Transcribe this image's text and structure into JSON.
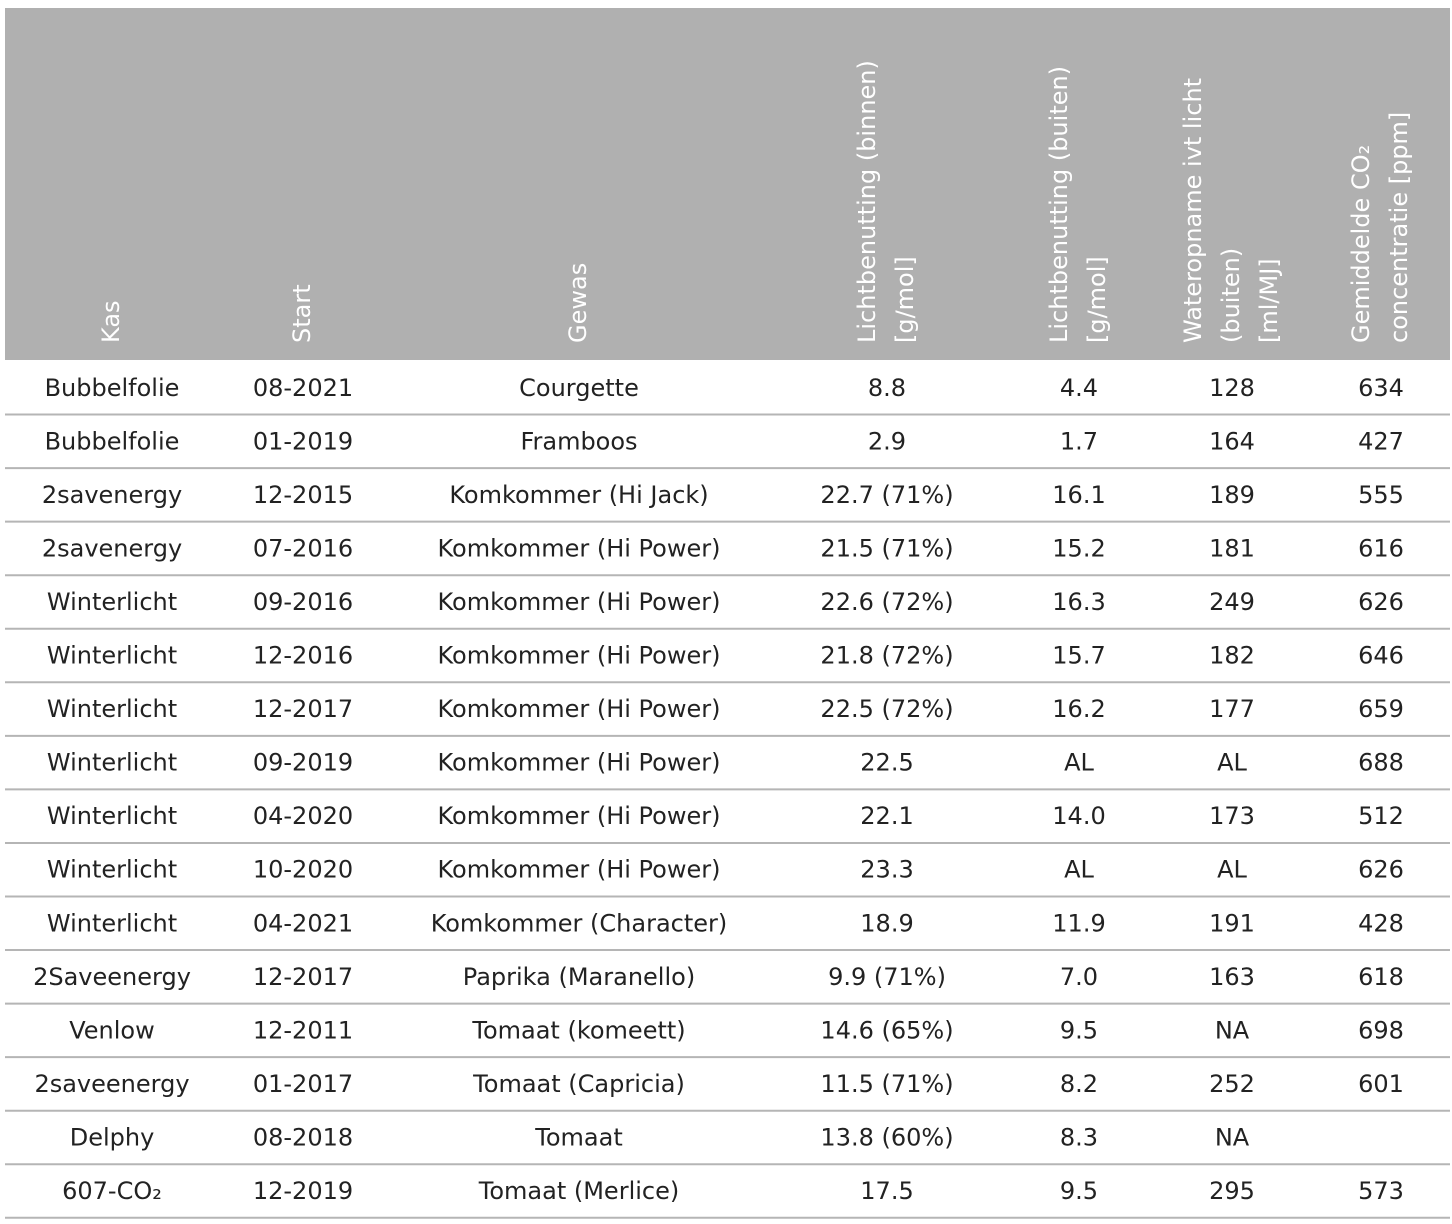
{
  "table": {
    "headers": [
      [
        "Kas"
      ],
      [
        "Start"
      ],
      [
        "Gewas"
      ],
      [
        "Lichtbenutting (binnen)",
        "[g/mol]"
      ],
      [
        "Lichtbenutting (buiten)",
        "[g/mol]"
      ],
      [
        "Wateropname ivt licht",
        "(buiten)",
        "[ml/MJ]"
      ],
      [
        "Gemiddelde CO₂",
        "concentratie [ppm]"
      ]
    ],
    "rows": [
      [
        "Bubbelfolie",
        "08-2021",
        "Courgette",
        "8.8",
        "4.4",
        "128",
        "634"
      ],
      [
        "Bubbelfolie",
        "01-2019",
        "Framboos",
        "2.9",
        "1.7",
        "164",
        "427"
      ],
      [
        "2savenergy",
        "12-2015",
        "Komkommer (Hi Jack)",
        "22.7 (71%)",
        "16.1",
        "189",
        "555"
      ],
      [
        "2savenergy",
        "07-2016",
        "Komkommer (Hi Power)",
        "21.5 (71%)",
        "15.2",
        "181",
        "616"
      ],
      [
        "Winterlicht",
        "09-2016",
        "Komkommer (Hi Power)",
        "22.6 (72%)",
        "16.3",
        "249",
        "626"
      ],
      [
        "Winterlicht",
        "12-2016",
        "Komkommer (Hi Power)",
        "21.8 (72%)",
        "15.7",
        "182",
        "646"
      ],
      [
        "Winterlicht",
        "12-2017",
        "Komkommer (Hi Power)",
        "22.5 (72%)",
        "16.2",
        "177",
        "659"
      ],
      [
        "Winterlicht",
        "09-2019",
        "Komkommer (Hi Power)",
        "22.5",
        "AL",
        "AL",
        "688"
      ],
      [
        "Winterlicht",
        "04-2020",
        "Komkommer (Hi Power)",
        "22.1",
        "14.0",
        "173",
        "512"
      ],
      [
        "Winterlicht",
        "10-2020",
        "Komkommer (Hi Power)",
        "23.3",
        "AL",
        "AL",
        "626"
      ],
      [
        "Winterlicht",
        "04-2021",
        "Komkommer (Character)",
        "18.9",
        "11.9",
        "191",
        "428"
      ],
      [
        "2Saveenergy",
        "12-2017",
        "Paprika (Maranello)",
        "9.9 (71%)",
        "7.0",
        "163",
        "618"
      ],
      [
        "Venlow",
        "12-2011",
        "Tomaat (komeett)",
        "14.6 (65%)",
        "9.5",
        "NA",
        "698"
      ],
      [
        "2saveenergy",
        "01-2017",
        "Tomaat (Capricia)",
        "11.5 (71%)",
        "8.2",
        "252",
        "601"
      ],
      [
        "Delphy",
        "08-2018",
        "Tomaat",
        "13.8 (60%)",
        "8.3",
        "NA",
        null
      ],
      [
        "607-CO₂",
        "12-2019",
        "Tomaat (Merlice)",
        "17.5",
        "9.5",
        "295",
        "573"
      ]
    ]
  }
}
